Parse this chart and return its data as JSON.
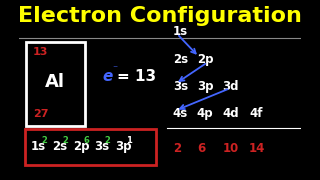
{
  "title": "Electron Configuration",
  "bg_color": "#000000",
  "title_color": "#ffff00",
  "white_color": "#ffffff",
  "red_color": "#cc2222",
  "green_color": "#44cc44",
  "blue_color": "#4466ff",
  "al_number": "13",
  "al_symbol": "Al",
  "al_mass": "27",
  "config_bases": [
    "1s",
    "2s",
    "2p",
    "3s",
    "3p"
  ],
  "config_supers": [
    "2",
    "2",
    "6",
    "2",
    "1"
  ],
  "super_colors": [
    "#44cc44",
    "#44cc44",
    "#44cc44",
    "#44cc44",
    "#ffffff"
  ],
  "bottom_nums": [
    "2",
    "6",
    "10",
    "14"
  ],
  "bottom_num_color": "#cc2222",
  "arrow_color": "#4466ff"
}
